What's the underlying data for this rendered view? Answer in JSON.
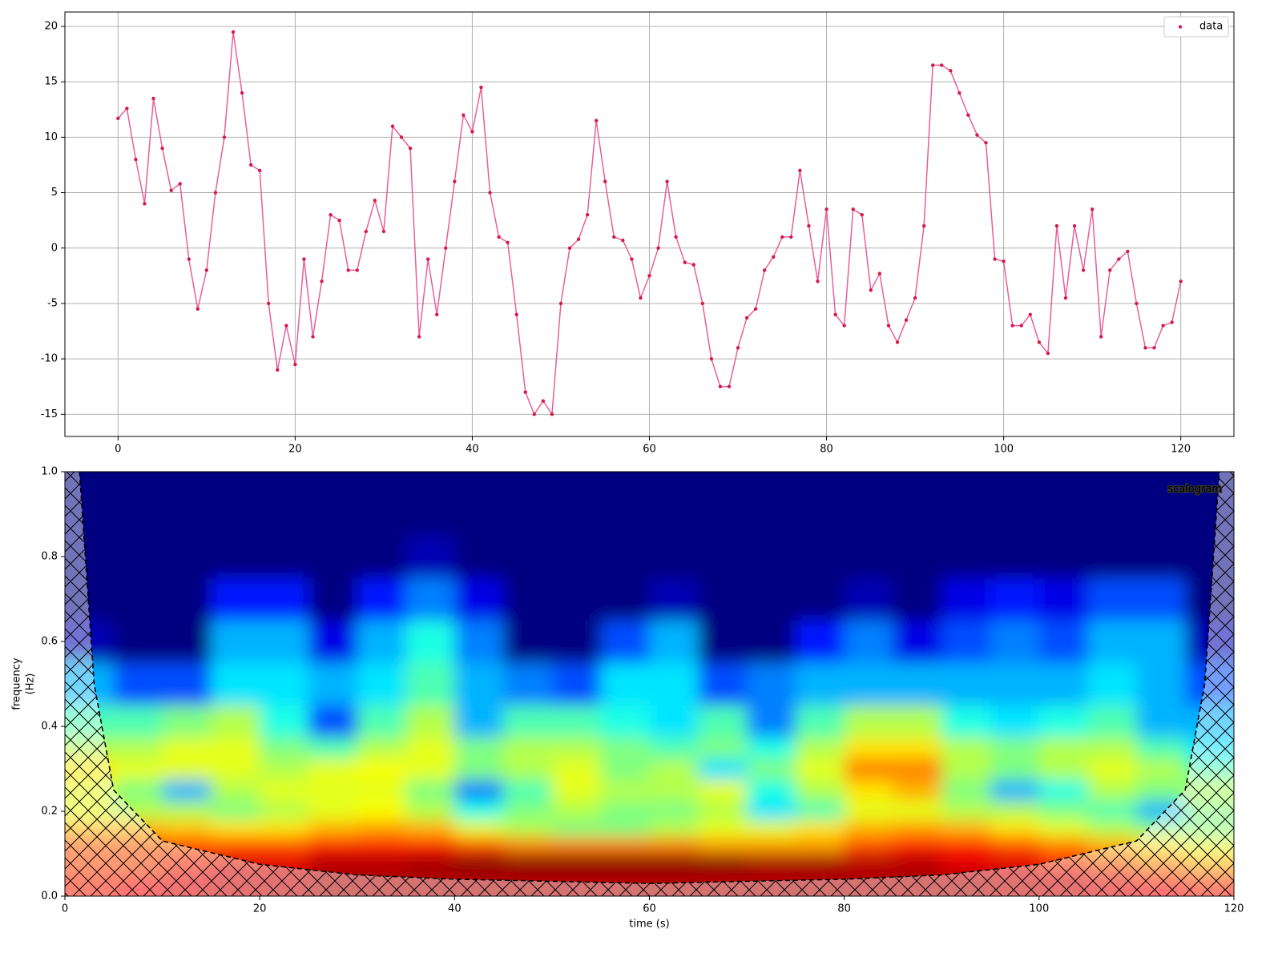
{
  "chart_data": [
    {
      "type": "line",
      "x": [
        0,
        1,
        2,
        3,
        4,
        5,
        6,
        7,
        8,
        9,
        10,
        11,
        12,
        13,
        14,
        15,
        16,
        17,
        18,
        19,
        20,
        21,
        22,
        23,
        24,
        25,
        26,
        27,
        28,
        29,
        30,
        31,
        32,
        33,
        34,
        35,
        36,
        37,
        38,
        39,
        40,
        41,
        42,
        43,
        44,
        45,
        46,
        47,
        48,
        49,
        50,
        51,
        52,
        53,
        54,
        55,
        56,
        57,
        58,
        59,
        60,
        61,
        62,
        63,
        64,
        65,
        66,
        67,
        68,
        69,
        70,
        71,
        72,
        73,
        74,
        75,
        76,
        77,
        78,
        79,
        80,
        81,
        82,
        83,
        84,
        85,
        86,
        87,
        88,
        89,
        90,
        91,
        92,
        93,
        94,
        95,
        96,
        97,
        98,
        99,
        100,
        101,
        102,
        103,
        104,
        105,
        106,
        107,
        108,
        109,
        110,
        111,
        112,
        113,
        114,
        115,
        116,
        117,
        118,
        119,
        120
      ],
      "series": [
        {
          "name": "data",
          "color": "#d6194b",
          "values": [
            11.7,
            12.6,
            8,
            4,
            13.5,
            9,
            5.2,
            5.8,
            -1,
            -5.5,
            -2,
            5,
            10,
            19.5,
            14,
            7.5,
            7,
            -5,
            -11,
            -7,
            -10.5,
            -1,
            -8,
            -3,
            3,
            2.5,
            -2,
            -2,
            1.5,
            4.3,
            1.5,
            11,
            10,
            9,
            -8,
            -1,
            -6,
            0,
            6,
            12,
            10.5,
            14.5,
            5,
            1,
            0.5,
            -6,
            -13,
            -15,
            -13.8,
            -15,
            -5,
            0,
            0.8,
            3,
            11.5,
            6,
            1,
            0.7,
            -1,
            -4.5,
            -2.5,
            0,
            6,
            1,
            -1.3,
            -1.5,
            -5,
            -10,
            -12.5,
            -12.5,
            -9,
            -6.3,
            -5.5,
            -2,
            -0.8,
            1,
            1,
            7,
            2,
            -3,
            3.5,
            -6,
            -7,
            3.5,
            3,
            -3.8,
            -2.3,
            -7,
            -8.5,
            -6.5,
            -4.5,
            2,
            16.5,
            16.5,
            16,
            14,
            12,
            10.2,
            9.5,
            -1,
            -1.2,
            -7,
            -7,
            -6,
            -8.5,
            -9.5,
            2,
            -4.5,
            2,
            -2,
            3.5,
            -8,
            -2,
            -1,
            -0.3,
            -5,
            -9,
            -9,
            -7,
            -6.7,
            -3
          ]
        }
      ],
      "xlim": [
        -6,
        126
      ],
      "xticks": [
        0,
        20,
        40,
        60,
        80,
        100,
        120
      ],
      "ylim": [
        -17,
        21.3
      ],
      "yticks": [
        -15,
        -10,
        -5,
        0,
        5,
        10,
        15,
        20
      ],
      "grid": true,
      "legend": "upper right"
    },
    {
      "type": "heatmap",
      "label": "scalogram",
      "xlabel": "time (s)",
      "ylabel": [
        "frequency",
        "(Hz)"
      ],
      "times": [
        2.5,
        7.5,
        12.5,
        17.5,
        22.5,
        27.5,
        32.5,
        37.5,
        42.5,
        47.5,
        52.5,
        57.5,
        62.5,
        67.5,
        72.5,
        77.5,
        82.5,
        87.5,
        92.5,
        97.5,
        102.5,
        107.5,
        112.5,
        117.5
      ],
      "frequencies": [
        0.04,
        0.08,
        0.12,
        0.16,
        0.2,
        0.25,
        0.3,
        0.35,
        0.4,
        0.5,
        0.6,
        0.7,
        0.8,
        0.9
      ],
      "power": [
        [
          0.85,
          0.87,
          0.9,
          0.92,
          0.93,
          0.95,
          0.95,
          0.95,
          0.95,
          0.95,
          0.95,
          0.95,
          0.95,
          0.95,
          0.95,
          0.95,
          0.95,
          0.95,
          0.95,
          0.93,
          0.92,
          0.9,
          0.87,
          0.85
        ],
        [
          0.8,
          0.8,
          0.85,
          0.9,
          0.9,
          0.95,
          0.95,
          0.97,
          1,
          1,
          1,
          1,
          1,
          1,
          0.97,
          0.97,
          0.95,
          0.95,
          0.9,
          0.9,
          0.85,
          0.8,
          0.75,
          0.7
        ],
        [
          0.8,
          0.8,
          0.8,
          0.8,
          0.8,
          0.85,
          0.85,
          0.85,
          0.8,
          0.75,
          0.75,
          0.75,
          0.75,
          0.72,
          0.72,
          0.72,
          0.8,
          0.85,
          0.85,
          0.8,
          0.75,
          0.7,
          0.65,
          0.6
        ],
        [
          0.7,
          0.7,
          0.68,
          0.65,
          0.65,
          0.7,
          0.72,
          0.7,
          0.6,
          0.55,
          0.5,
          0.5,
          0.55,
          0.6,
          0.6,
          0.65,
          0.7,
          0.72,
          0.7,
          0.65,
          0.6,
          0.55,
          0.5,
          0.5
        ],
        [
          0.6,
          0.55,
          0.55,
          0.5,
          0.55,
          0.6,
          0.62,
          0.55,
          0.4,
          0.5,
          0.55,
          0.5,
          0.5,
          0.55,
          0.35,
          0.45,
          0.6,
          0.6,
          0.55,
          0.55,
          0.5,
          0.45,
          0.3,
          0.5
        ],
        [
          0.6,
          0.5,
          0.3,
          0.55,
          0.6,
          0.6,
          0.6,
          0.5,
          0.25,
          0.45,
          0.6,
          0.55,
          0.55,
          0.6,
          0.4,
          0.55,
          0.65,
          0.7,
          0.5,
          0.3,
          0.4,
          0.55,
          0.5,
          0.55
        ],
        [
          0.65,
          0.6,
          0.6,
          0.6,
          0.55,
          0.6,
          0.62,
          0.6,
          0.5,
          0.55,
          0.6,
          0.5,
          0.55,
          0.35,
          0.5,
          0.6,
          0.75,
          0.75,
          0.55,
          0.5,
          0.55,
          0.6,
          0.55,
          0.45
        ],
        [
          0.55,
          0.55,
          0.6,
          0.6,
          0.5,
          0.45,
          0.55,
          0.6,
          0.5,
          0.55,
          0.55,
          0.5,
          0.45,
          0.5,
          0.4,
          0.55,
          0.65,
          0.65,
          0.55,
          0.5,
          0.55,
          0.55,
          0.45,
          0.35
        ],
        [
          0.45,
          0.45,
          0.5,
          0.55,
          0.4,
          0.2,
          0.45,
          0.55,
          0.3,
          0.45,
          0.45,
          0.4,
          0.35,
          0.45,
          0.25,
          0.45,
          0.55,
          0.55,
          0.4,
          0.35,
          0.4,
          0.45,
          0.3,
          0.3
        ],
        [
          0.3,
          0.2,
          0.2,
          0.35,
          0.35,
          0.3,
          0.35,
          0.45,
          0.3,
          0.25,
          0.2,
          0.35,
          0.35,
          0.2,
          0.25,
          0.3,
          0.3,
          0.3,
          0.3,
          0.3,
          0.3,
          0.35,
          0.3,
          0.2
        ],
        [
          0.05,
          0,
          0,
          0.3,
          0.3,
          0.1,
          0.3,
          0.4,
          0.25,
          0,
          0,
          0.2,
          0.3,
          0,
          0,
          0.15,
          0.25,
          0.1,
          0.2,
          0.25,
          0.2,
          0.3,
          0.3,
          0.05
        ],
        [
          0,
          0,
          0,
          0.15,
          0.15,
          0,
          0.15,
          0.25,
          0.1,
          0,
          0,
          0,
          0.05,
          0,
          0,
          0,
          0.05,
          0,
          0.1,
          0.15,
          0.1,
          0.2,
          0.2,
          0
        ],
        [
          0,
          0,
          0,
          0,
          0,
          0,
          0,
          0.05,
          0,
          0,
          0,
          0,
          0,
          0,
          0,
          0,
          0,
          0,
          0,
          0,
          0,
          0,
          0,
          0
        ],
        [
          0,
          0,
          0,
          0,
          0,
          0,
          0,
          0,
          0,
          0,
          0,
          0,
          0,
          0,
          0,
          0,
          0,
          0,
          0,
          0,
          0,
          0,
          0,
          0
        ]
      ],
      "coi_x": [
        1.5,
        3,
        5,
        10,
        20,
        30,
        40,
        60,
        80,
        90,
        100,
        110,
        115,
        117,
        118.5
      ],
      "coi_f": [
        1,
        0.5,
        0.25,
        0.13,
        0.075,
        0.05,
        0.04,
        0.03,
        0.04,
        0.05,
        0.075,
        0.13,
        0.25,
        0.5,
        1
      ],
      "xlim": [
        0,
        120
      ],
      "xticks": [
        0,
        20,
        40,
        60,
        80,
        100,
        120
      ],
      "ylim": [
        0,
        1
      ],
      "yticks": [
        {
          "value": 0,
          "label": "0.0"
        },
        {
          "value": 0.2,
          "label": "0.2"
        },
        {
          "value": 0.4,
          "label": "0.4"
        },
        {
          "value": 0.6,
          "label": "0.6"
        },
        {
          "value": 0.8,
          "label": "0.8"
        },
        {
          "value": 1,
          "label": "1.0"
        }
      ]
    }
  ]
}
